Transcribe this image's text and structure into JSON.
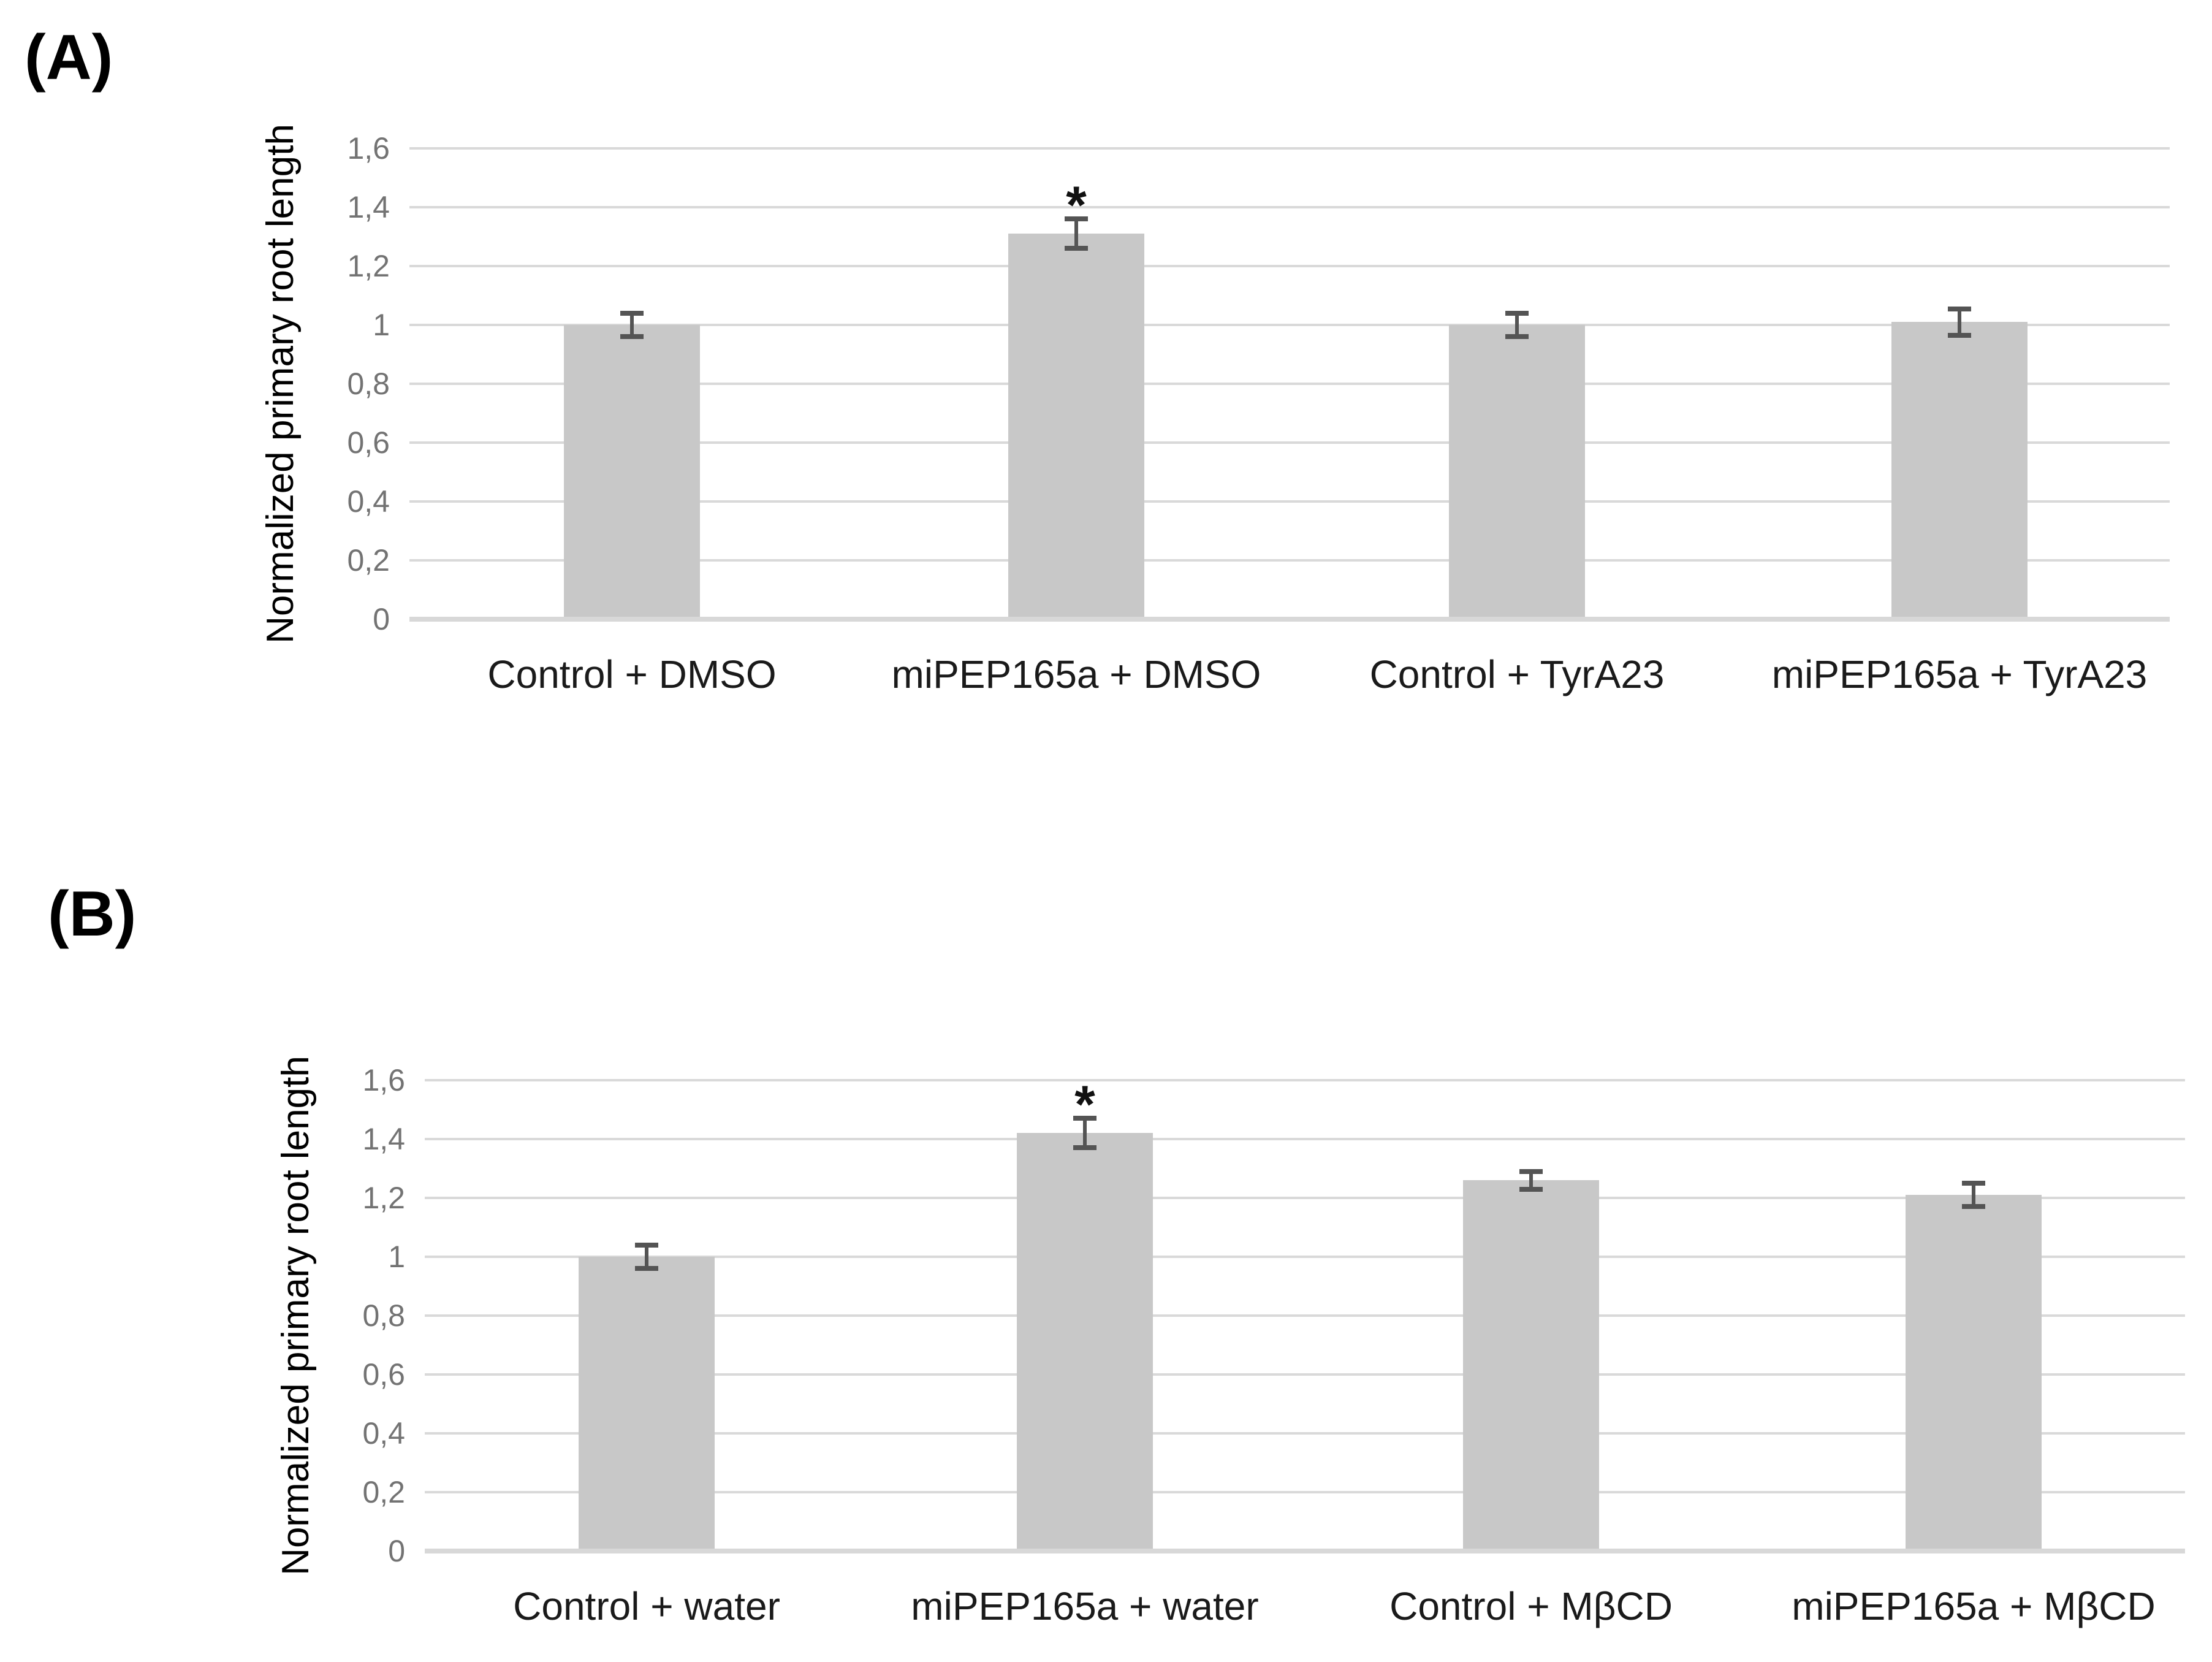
{
  "figure": {
    "background": "#ffffff",
    "colors": {
      "bar_fill": "#c8c8c8",
      "gridline": "#d9d9d9",
      "axis_line": "#d8d8d8",
      "error_bar": "#545454",
      "tick_text": "#737373",
      "category_text": "#1a1a1a",
      "significance_text": "#111111"
    }
  },
  "chart_data": [
    {
      "type": "bar",
      "panel_label": "(A)",
      "title": "",
      "xlabel": "",
      "ylabel": "Normalized primary root length",
      "categories": [
        "Control + DMSO",
        "miPEP165a + DMSO",
        "Control + TyrA23",
        "miPEP165a + TyrA23"
      ],
      "values": [
        1.0,
        1.31,
        1.0,
        1.01
      ],
      "errors": [
        0.04,
        0.05,
        0.04,
        0.045
      ],
      "significance": [
        "",
        "*",
        "",
        ""
      ],
      "ylim": [
        0,
        1.6
      ],
      "ytick_step": 0.2,
      "ytick_labels": [
        "0",
        "0,2",
        "0,4",
        "0,6",
        "0,8",
        "1",
        "1,2",
        "1,4",
        "1,6"
      ],
      "decimal_separator": ",",
      "grid": true,
      "legend": "none"
    },
    {
      "type": "bar",
      "panel_label": "(B)",
      "title": "",
      "xlabel": "",
      "ylabel": "Normalized primary root length",
      "categories": [
        "Control + water",
        "miPEP165a + water",
        "Control + MβCD",
        "miPEP165a + MβCD"
      ],
      "values": [
        1.0,
        1.42,
        1.26,
        1.21
      ],
      "errors": [
        0.04,
        0.05,
        0.03,
        0.04
      ],
      "significance": [
        "",
        "*",
        "",
        ""
      ],
      "ylim": [
        0,
        1.6
      ],
      "ytick_step": 0.2,
      "ytick_labels": [
        "0",
        "0,2",
        "0,4",
        "0,6",
        "0,8",
        "1",
        "1,2",
        "1,4",
        "1,6"
      ],
      "decimal_separator": ",",
      "grid": true,
      "legend": "none"
    }
  ]
}
